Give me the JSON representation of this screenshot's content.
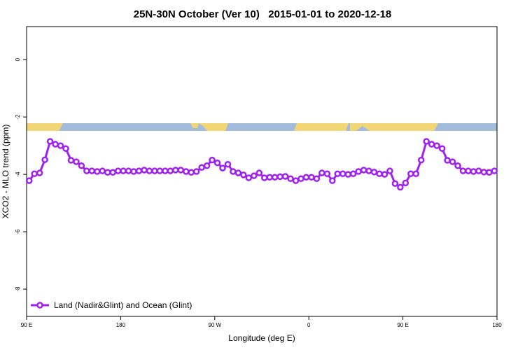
{
  "chart_data": {
    "type": "line",
    "title": "25N-30N October (Ver 10)   2015-01-01 to 2020-12-18",
    "xlabel": "Longitude (deg E)",
    "ylabel": "XCO2 - MLO trend (ppm)",
    "xlim": [
      90,
      540
    ],
    "ylim": [
      -8.95,
      1.15
    ],
    "xticks": [
      {
        "value": 90,
        "label": "90 E"
      },
      180,
      {
        "value": 270,
        "label": "90 W"
      },
      {
        "value": 360,
        "label": "0"
      },
      {
        "value": 450,
        "label": "90 E"
      },
      {
        "value": 540,
        "label": "180"
      }
    ],
    "yticks": [
      0,
      -2,
      -4,
      -6,
      -8
    ],
    "legend": "bottom-left",
    "x": [
      92.5,
      97.5,
      102.5,
      107.5,
      112.5,
      117.5,
      122.5,
      127.5,
      132.5,
      137.5,
      142.5,
      147.5,
      152.5,
      157.5,
      162.5,
      167.5,
      172.5,
      177.5,
      182.5,
      187.5,
      192.5,
      197.5,
      202.5,
      207.5,
      212.5,
      217.5,
      222.5,
      227.5,
      232.5,
      237.5,
      242.5,
      247.5,
      252.5,
      257.5,
      262.5,
      267.5,
      272.5,
      277.5,
      282.5,
      287.5,
      292.5,
      297.5,
      302.5,
      307.5,
      312.5,
      317.5,
      322.5,
      327.5,
      332.5,
      337.5,
      342.5,
      347.5,
      352.5,
      357.5,
      362.5,
      367.5,
      372.5,
      377.5,
      382.5,
      387.5,
      392.5,
      397.5,
      402.5,
      407.5,
      412.5,
      417.5,
      422.5,
      427.5,
      432.5,
      437.5,
      442.5,
      447.5,
      452.5,
      457.5,
      462.5,
      467.5,
      472.5,
      477.5,
      482.5,
      487.5,
      492.5,
      497.5,
      502.5,
      507.5,
      512.5,
      517.5,
      522.5,
      527.5,
      532.5,
      537.5
    ],
    "series": [
      {
        "name": "Land (Nadir&Glint) and Ocean (Glint)",
        "color": "#a020f0",
        "values": [
          -4.22,
          -3.98,
          -3.95,
          -3.49,
          -2.85,
          -2.95,
          -3.0,
          -3.1,
          -3.51,
          -3.56,
          -3.7,
          -3.88,
          -3.88,
          -3.9,
          -3.88,
          -3.93,
          -3.93,
          -3.88,
          -3.88,
          -3.88,
          -3.9,
          -3.88,
          -3.85,
          -3.88,
          -3.88,
          -3.88,
          -3.88,
          -3.88,
          -3.85,
          -3.85,
          -3.9,
          -3.93,
          -3.9,
          -3.76,
          -3.7,
          -3.5,
          -3.6,
          -3.78,
          -3.65,
          -3.9,
          -3.95,
          -4.02,
          -4.12,
          -4.05,
          -3.95,
          -4.12,
          -4.1,
          -4.1,
          -4.08,
          -4.07,
          -4.15,
          -4.22,
          -4.15,
          -4.1,
          -4.1,
          -4.15,
          -3.95,
          -3.98,
          -4.22,
          -3.98,
          -3.98,
          -4.0,
          -3.98,
          -3.9,
          -3.85,
          -3.88,
          -3.92,
          -3.98,
          -4.0,
          -3.88,
          -4.32,
          -4.45,
          -4.3,
          -3.98,
          -3.98,
          -3.5,
          -2.85,
          -2.95,
          -3.0,
          -3.1,
          -3.51,
          -3.56,
          -3.7,
          -3.88,
          -3.88,
          -3.9,
          -3.88,
          -3.92,
          -3.93,
          -3.88
        ]
      }
    ]
  }
}
